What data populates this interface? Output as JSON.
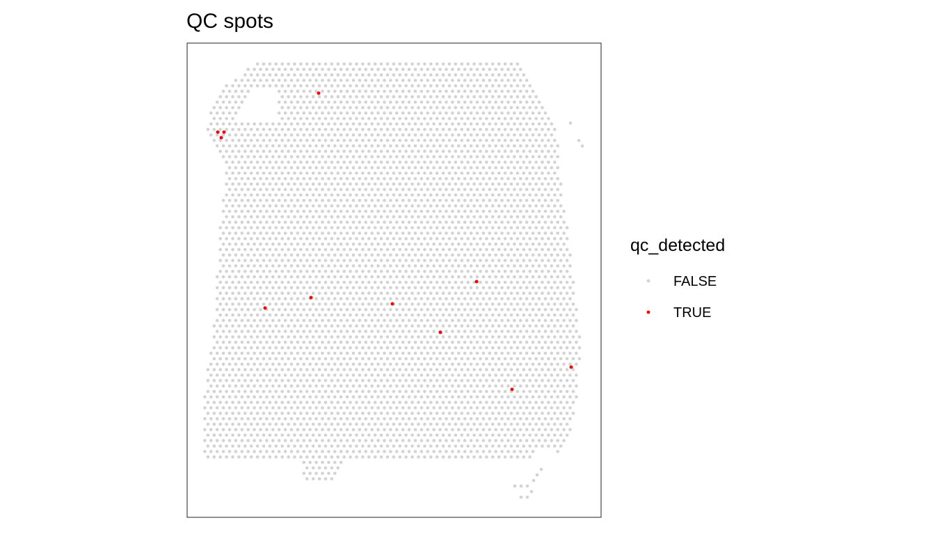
{
  "chart_data": {
    "type": "scatter",
    "title": "QC spots",
    "xlabel": "",
    "ylabel": "",
    "grid": false,
    "legend": {
      "title": "qc_detected",
      "placement": "right",
      "entries": [
        {
          "label": "FALSE",
          "color": "#d3d3d3"
        },
        {
          "label": "TRUE",
          "color": "#ff0000"
        }
      ]
    },
    "series": [
      {
        "name": "TRUE",
        "color": "#ff0000",
        "points": [
          [
            458,
            134
          ],
          [
            313,
            190
          ],
          [
            322,
            190
          ],
          [
            318,
            198
          ],
          [
            685,
            405
          ],
          [
            447,
            428
          ],
          [
            381,
            443
          ],
          [
            564,
            437
          ],
          [
            633,
            478
          ],
          [
            821,
            528
          ],
          [
            736,
            560
          ]
        ]
      }
    ]
  }
}
